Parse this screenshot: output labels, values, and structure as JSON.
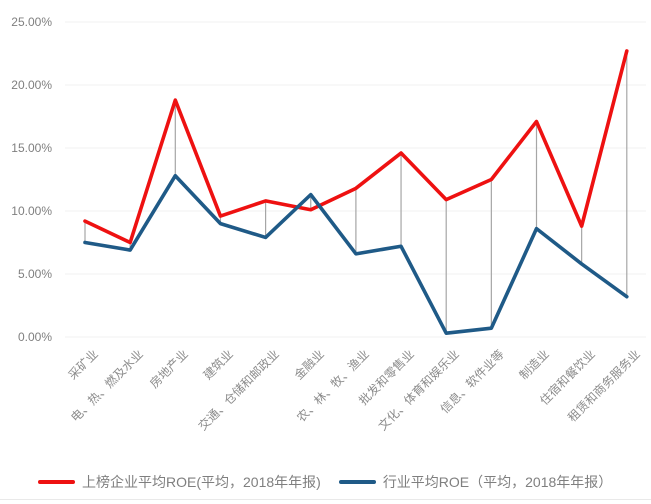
{
  "chart_data": {
    "type": "line",
    "title": "",
    "xlabel": "",
    "ylabel": "",
    "ylim": [
      0,
      25
    ],
    "grid": true,
    "legend_position": "bottom",
    "high_low_lines": true,
    "yticks": [
      "0.00%",
      "5.00%",
      "10.00%",
      "15.00%",
      "20.00%",
      "25.00%"
    ],
    "categories": [
      "采矿业",
      "电、热、燃及水业",
      "房地产业",
      "建筑业",
      "交通、仓储和邮政业",
      "金融业",
      "农、林、牧、渔业",
      "批发和零售业",
      "文化、体育和娱乐业",
      "信息、软件业等",
      "制造业",
      "住宿和餐饮业",
      "租赁和商务服务业"
    ],
    "series": [
      {
        "name": "上榜企业平均ROE(平均，2018年年报)",
        "color": "#ee1111",
        "values": [
          9.2,
          7.5,
          18.8,
          9.6,
          10.8,
          10.1,
          11.8,
          14.6,
          10.9,
          12.5,
          17.1,
          8.8,
          22.7
        ]
      },
      {
        "name": "行业平均ROE（平均，2018年年报）",
        "color": "#1f5a87",
        "values": [
          7.5,
          6.9,
          12.8,
          9.0,
          7.9,
          11.3,
          6.6,
          7.2,
          0.3,
          0.7,
          8.6,
          5.8,
          3.2
        ]
      }
    ]
  },
  "colors": {
    "background": "#ffffff",
    "gridline": "#f2f2f2",
    "dropline": "#a6a6a6",
    "tick_text": "#7f7f7f",
    "category_text": "#8c8c8c",
    "legend_text": "#7f7f7f",
    "bottom_hairline": "#e9e9e9"
  }
}
